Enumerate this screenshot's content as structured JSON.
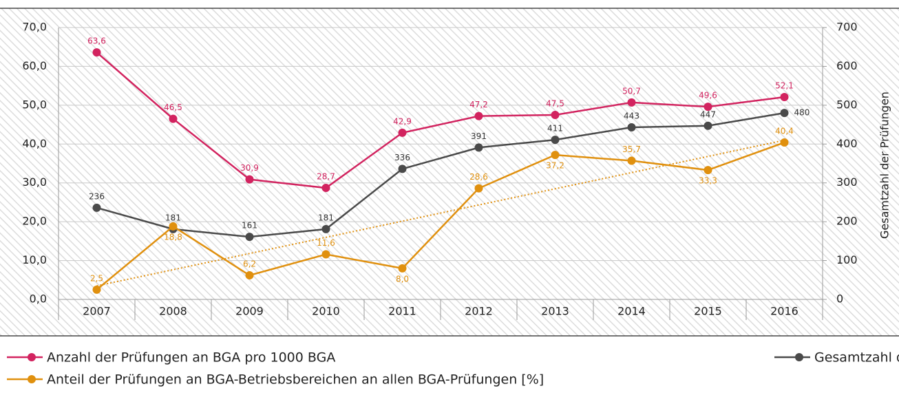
{
  "chart_data": {
    "type": "line",
    "categories": [
      "2007",
      "2008",
      "2009",
      "2010",
      "2011",
      "2012",
      "2013",
      "2014",
      "2015",
      "2016"
    ],
    "ylim": [
      0,
      70
    ],
    "yticks": [
      {
        "value": 0,
        "label": "0,0"
      },
      {
        "value": 10,
        "label": "10,0"
      },
      {
        "value": 20,
        "label": "20,0"
      },
      {
        "value": 30,
        "label": "30,0"
      },
      {
        "value": 40,
        "label": "40,0"
      },
      {
        "value": 50,
        "label": "50,0"
      },
      {
        "value": 60,
        "label": "60,0"
      },
      {
        "value": 70,
        "label": "70,0"
      }
    ],
    "y2lim": [
      0,
      700
    ],
    "y2ticks": [
      0,
      100,
      200,
      300,
      400,
      500,
      600,
      700
    ],
    "y2label": "Gesamtzahl der Prüfungen",
    "grid": true,
    "series": [
      {
        "name": "Anzahl der Prüfungen an BGA pro 1000 BGA",
        "color": "#d2235f",
        "values": [
          63.6,
          46.5,
          30.9,
          28.7,
          42.9,
          47.2,
          47.5,
          50.7,
          49.6,
          52.1
        ],
        "value_labels": [
          "63,6",
          "46,5",
          "30,9",
          "28,7",
          "42,9",
          "47,2",
          "47,5",
          "50,7",
          "49,6",
          "52,1"
        ]
      },
      {
        "name": "Gesamtzahl der Prüfungen an BGA",
        "color": "#4a4a4a",
        "axis": "y2",
        "values": [
          236,
          181,
          161,
          181,
          336,
          391,
          411,
          443,
          447,
          480
        ]
      },
      {
        "name": "Anteil der Prüfungen an BGA-Betriebsbereichen an allen BGA-Prüfungen [%]",
        "color": "#e0900e",
        "values": [
          2.5,
          18.8,
          6.2,
          11.6,
          8.0,
          28.6,
          37.2,
          35.7,
          33.3,
          40.4
        ],
        "value_labels": [
          "2,5",
          "18,8",
          "6,2",
          "11,6",
          "8,0",
          "28,6",
          "37,2",
          "35,7",
          "33,3",
          "40,4"
        ],
        "trendline": true
      }
    ]
  }
}
